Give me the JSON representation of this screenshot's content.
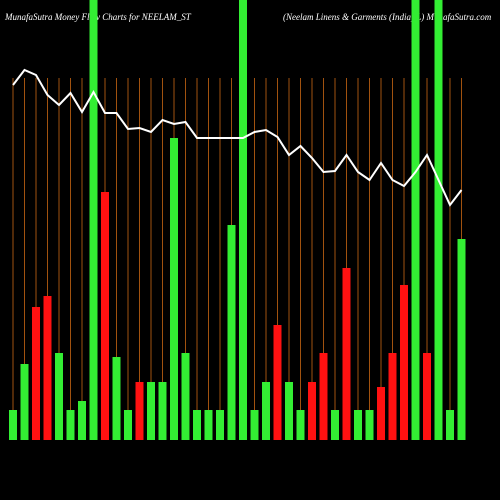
{
  "chart_data": {
    "type": "bar",
    "title": "MunafaSutra  Money Flow  Charts for NEELAM_ST",
    "subtitle": "(Neelam Linens & Garments (India) L) MunafaSutra.com",
    "ylim": [
      0,
      440
    ],
    "grid": true,
    "grid_color": "#a0520f",
    "bars": {
      "values": [
        30,
        76,
        133,
        144,
        87,
        30,
        39,
        440,
        248,
        83,
        30,
        58,
        58,
        58,
        302,
        87,
        30,
        30,
        30,
        215,
        440,
        30,
        58,
        115,
        58,
        30,
        58,
        87,
        30,
        172,
        30,
        30,
        53,
        87,
        155,
        440,
        87,
        440,
        30,
        201
      ],
      "colors": [
        "#33ee33",
        "#33ee33",
        "#ff1111",
        "#ff1111",
        "#33ee33",
        "#33ee33",
        "#33ee33",
        "#33ee33",
        "#ff1111",
        "#33ee33",
        "#33ee33",
        "#ff1111",
        "#33ee33",
        "#33ee33",
        "#33ee33",
        "#33ee33",
        "#33ee33",
        "#33ee33",
        "#33ee33",
        "#33ee33",
        "#33ee33",
        "#33ee33",
        "#33ee33",
        "#ff1111",
        "#33ee33",
        "#33ee33",
        "#ff1111",
        "#ff1111",
        "#33ee33",
        "#ff1111",
        "#33ee33",
        "#33ee33",
        "#ff1111",
        "#ff1111",
        "#ff1111",
        "#33ee33",
        "#ff1111",
        "#33ee33",
        "#33ee33",
        "#33ee33"
      ]
    },
    "line": {
      "color": "#ffffff",
      "values": [
        355,
        370,
        365,
        345,
        335,
        347,
        328,
        348,
        327,
        327,
        311,
        312,
        308,
        320,
        316,
        318,
        302,
        302,
        302,
        302,
        302,
        308,
        310,
        303,
        285,
        294,
        282,
        268,
        269,
        285,
        268,
        260,
        277,
        260,
        254,
        268,
        285,
        260,
        235,
        250
      ]
    }
  }
}
